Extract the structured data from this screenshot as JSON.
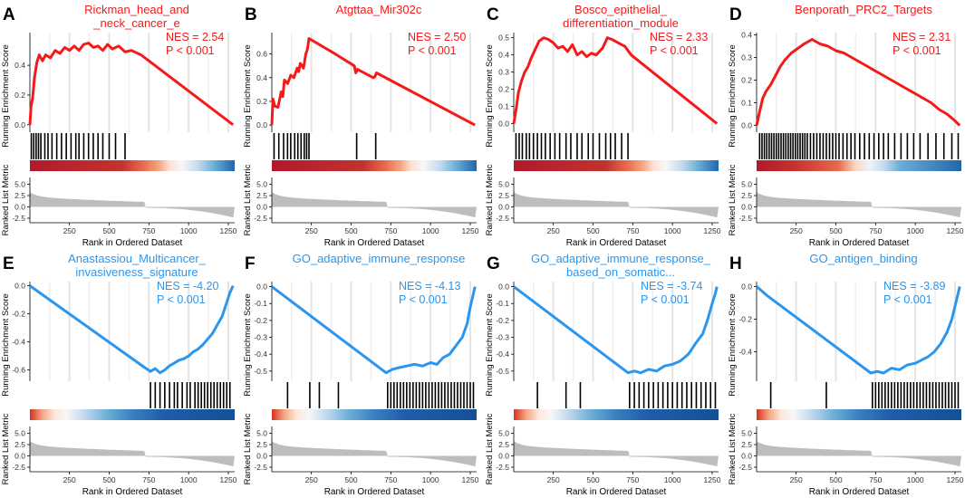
{
  "colors": {
    "up": "#f51a1a",
    "down": "#2a96ee",
    "hit": "#000000",
    "metric_fill": "#bdbdbd",
    "grid": "#e4e4e4"
  },
  "chart_data": [
    {
      "letter": "A",
      "type": "line",
      "title_lines": [
        "Rickman_head_and",
        "_neck_cancer_e"
      ],
      "nes": "NES = 2.54",
      "p": "P < 0.001",
      "direction": "up",
      "ylabel": "Running Enrichment Score",
      "ylim": [
        -0.05,
        0.62
      ],
      "yticks": [
        0.0,
        0.2,
        0.4
      ],
      "es_points": [
        [
          1,
          0.0
        ],
        [
          8,
          0.12
        ],
        [
          18,
          0.18
        ],
        [
          30,
          0.32
        ],
        [
          45,
          0.42
        ],
        [
          60,
          0.47
        ],
        [
          80,
          0.43
        ],
        [
          100,
          0.47
        ],
        [
          130,
          0.45
        ],
        [
          160,
          0.5
        ],
        [
          190,
          0.48
        ],
        [
          220,
          0.52
        ],
        [
          250,
          0.5
        ],
        [
          280,
          0.53
        ],
        [
          310,
          0.5
        ],
        [
          340,
          0.54
        ],
        [
          370,
          0.55
        ],
        [
          400,
          0.52
        ],
        [
          430,
          0.53
        ],
        [
          460,
          0.5
        ],
        [
          490,
          0.54
        ],
        [
          520,
          0.51
        ],
        [
          560,
          0.53
        ],
        [
          600,
          0.49
        ],
        [
          640,
          0.5
        ],
        [
          700,
          0.47
        ],
        [
          1280,
          0.0
        ]
      ],
      "hits": [
        10,
        25,
        40,
        55,
        70,
        95,
        115,
        140,
        170,
        200,
        230,
        260,
        290,
        310,
        340,
        370,
        400,
        430,
        460,
        500,
        540,
        600
      ],
      "heat": "red",
      "metric": {
        "label": "Ranked List Metric",
        "yticks": [
          -2.5,
          0.0,
          2.5,
          5.0
        ],
        "ylim": [
          -3.5,
          6.5
        ]
      },
      "xlabel": "Rank in Ordered Dataset",
      "xticks": [
        250,
        500,
        750,
        1000,
        1250
      ],
      "xlim": [
        1,
        1290
      ]
    },
    {
      "letter": "B",
      "type": "line",
      "title_lines": [
        "Atgttaa_Mir302c"
      ],
      "nes": "NES = 2.50",
      "p": "P < 0.001",
      "direction": "up",
      "ylabel": "Running Enrichment Score",
      "ylim": [
        -0.06,
        0.78
      ],
      "yticks": [
        0.0,
        0.2,
        0.4,
        0.6
      ],
      "es_points": [
        [
          1,
          0.0
        ],
        [
          8,
          0.22
        ],
        [
          20,
          0.16
        ],
        [
          40,
          0.15
        ],
        [
          60,
          0.28
        ],
        [
          70,
          0.24
        ],
        [
          80,
          0.38
        ],
        [
          100,
          0.35
        ],
        [
          120,
          0.42
        ],
        [
          140,
          0.4
        ],
        [
          160,
          0.48
        ],
        [
          170,
          0.45
        ],
        [
          180,
          0.52
        ],
        [
          200,
          0.48
        ],
        [
          215,
          0.6
        ],
        [
          225,
          0.64
        ],
        [
          235,
          0.73
        ],
        [
          400,
          0.6
        ],
        [
          520,
          0.5
        ],
        [
          530,
          0.44
        ],
        [
          540,
          0.47
        ],
        [
          640,
          0.4
        ],
        [
          650,
          0.41
        ],
        [
          660,
          0.44
        ],
        [
          1280,
          0.0
        ]
      ],
      "hits": [
        15,
        45,
        75,
        100,
        120,
        145,
        165,
        185,
        205,
        220,
        235,
        535,
        655
      ],
      "heat": "red",
      "metric": {
        "label": "Ranked List Metric",
        "yticks": [
          -2.5,
          0.0,
          2.5,
          5.0
        ],
        "ylim": [
          -3.5,
          6.5
        ]
      },
      "xlabel": "Rank in Ordered Dataset",
      "xticks": [
        250,
        500,
        750,
        1000,
        1250
      ],
      "xlim": [
        1,
        1290
      ]
    },
    {
      "letter": "C",
      "type": "line",
      "title_lines": [
        "Bosco_epithelial_",
        "differentiation_module"
      ],
      "nes": "NES = 2.33",
      "p": "P < 0.001",
      "direction": "up",
      "ylabel": "Running Enrichment Score",
      "ylim": [
        -0.05,
        0.53
      ],
      "yticks": [
        0.0,
        0.1,
        0.2,
        0.3,
        0.4,
        0.5
      ],
      "es_points": [
        [
          1,
          0.0
        ],
        [
          15,
          0.08
        ],
        [
          30,
          0.18
        ],
        [
          50,
          0.25
        ],
        [
          70,
          0.3
        ],
        [
          90,
          0.33
        ],
        [
          110,
          0.38
        ],
        [
          130,
          0.42
        ],
        [
          160,
          0.48
        ],
        [
          190,
          0.5
        ],
        [
          220,
          0.49
        ],
        [
          250,
          0.47
        ],
        [
          280,
          0.44
        ],
        [
          310,
          0.45
        ],
        [
          340,
          0.42
        ],
        [
          370,
          0.46
        ],
        [
          400,
          0.4
        ],
        [
          430,
          0.42
        ],
        [
          460,
          0.39
        ],
        [
          490,
          0.41
        ],
        [
          520,
          0.4
        ],
        [
          560,
          0.44
        ],
        [
          590,
          0.5
        ],
        [
          620,
          0.49
        ],
        [
          660,
          0.47
        ],
        [
          700,
          0.45
        ],
        [
          740,
          0.4
        ],
        [
          1280,
          0.0
        ]
      ],
      "hits": [
        15,
        35,
        55,
        80,
        100,
        125,
        150,
        175,
        200,
        230,
        260,
        290,
        330,
        360,
        400,
        430,
        470,
        500,
        540,
        580,
        610,
        640,
        680,
        720
      ],
      "heat": "red",
      "metric": {
        "label": "Ranked List Metric",
        "yticks": [
          -2.5,
          0.0,
          2.5,
          5.0
        ],
        "ylim": [
          -3.5,
          6.5
        ]
      },
      "xlabel": "Rank in Ordered Dataset",
      "xticks": [
        250,
        500,
        750,
        1000,
        1250
      ],
      "xlim": [
        1,
        1290
      ]
    },
    {
      "letter": "D",
      "type": "line",
      "title_lines": [
        "Benporath_PRC2_Targets"
      ],
      "nes": "NES = 2.31",
      "p": "P < 0.001",
      "direction": "up",
      "ylabel": "Running Enrichment Score",
      "ylim": [
        -0.03,
        0.41
      ],
      "yticks": [
        0.0,
        0.1,
        0.2,
        0.3,
        0.4
      ],
      "es_points": [
        [
          1,
          0.0
        ],
        [
          20,
          0.06
        ],
        [
          40,
          0.12
        ],
        [
          60,
          0.15
        ],
        [
          90,
          0.18
        ],
        [
          120,
          0.22
        ],
        [
          150,
          0.26
        ],
        [
          180,
          0.29
        ],
        [
          220,
          0.32
        ],
        [
          260,
          0.34
        ],
        [
          300,
          0.36
        ],
        [
          350,
          0.38
        ],
        [
          400,
          0.36
        ],
        [
          450,
          0.35
        ],
        [
          500,
          0.33
        ],
        [
          550,
          0.32
        ],
        [
          600,
          0.3
        ],
        [
          650,
          0.28
        ],
        [
          700,
          0.26
        ],
        [
          750,
          0.24
        ],
        [
          800,
          0.22
        ],
        [
          850,
          0.2
        ],
        [
          900,
          0.18
        ],
        [
          950,
          0.16
        ],
        [
          1000,
          0.14
        ],
        [
          1050,
          0.12
        ],
        [
          1100,
          0.1
        ],
        [
          1150,
          0.07
        ],
        [
          1200,
          0.05
        ],
        [
          1250,
          0.02
        ],
        [
          1280,
          0.0
        ]
      ],
      "hits": [
        20,
        35,
        50,
        65,
        80,
        95,
        110,
        125,
        140,
        155,
        170,
        185,
        200,
        215,
        230,
        245,
        260,
        275,
        290,
        305,
        320,
        340,
        360,
        380,
        400,
        420,
        440,
        460,
        480,
        500,
        520,
        545,
        570,
        595,
        620,
        650,
        680,
        710,
        740,
        770,
        800,
        830,
        870,
        910,
        950,
        990,
        1030,
        1080,
        1130,
        1180,
        1230,
        1270
      ],
      "heat": "red-long",
      "metric": {
        "label": "Ranked List Metric",
        "yticks": [
          -2.5,
          0.0,
          2.5,
          5.0
        ],
        "ylim": [
          -3.5,
          6.5
        ]
      },
      "xlabel": "Rank in Ordered Dataset",
      "xticks": [
        250,
        500,
        750,
        1000,
        1250
      ],
      "xlim": [
        1,
        1290
      ]
    },
    {
      "letter": "E",
      "type": "line",
      "title_lines": [
        "Anastassiou_Multicancer_",
        "invasiveness_signature"
      ],
      "nes": "NES = -4.20",
      "p": "P < 0.001",
      "direction": "down",
      "ylabel": "Running Enrichment Score",
      "ylim": [
        -0.68,
        0.03
      ],
      "yticks": [
        -0.6,
        -0.4,
        -0.2,
        0.0
      ],
      "es_points": [
        [
          1,
          0.0
        ],
        [
          720,
          -0.58
        ],
        [
          760,
          -0.61
        ],
        [
          790,
          -0.59
        ],
        [
          820,
          -0.62
        ],
        [
          850,
          -0.6
        ],
        [
          880,
          -0.57
        ],
        [
          910,
          -0.55
        ],
        [
          940,
          -0.53
        ],
        [
          970,
          -0.52
        ],
        [
          1000,
          -0.5
        ],
        [
          1030,
          -0.47
        ],
        [
          1060,
          -0.45
        ],
        [
          1090,
          -0.42
        ],
        [
          1120,
          -0.38
        ],
        [
          1150,
          -0.34
        ],
        [
          1180,
          -0.28
        ],
        [
          1210,
          -0.22
        ],
        [
          1240,
          -0.12
        ],
        [
          1260,
          -0.05
        ],
        [
          1280,
          0.0
        ]
      ],
      "hits": [
        760,
        790,
        820,
        850,
        880,
        910,
        930,
        960,
        990,
        1010,
        1040,
        1060,
        1080,
        1100,
        1120,
        1140,
        1160,
        1180,
        1200,
        1220,
        1240,
        1260
      ],
      "heat": "blue",
      "metric": {
        "label": "Ranked List Metric",
        "yticks": [
          -2.5,
          0.0,
          2.5,
          5.0
        ],
        "ylim": [
          -3.5,
          6.5
        ]
      },
      "xlabel": "Rank in Ordered Dataset",
      "xticks": [
        250,
        500,
        750,
        1000,
        1250
      ],
      "xlim": [
        1,
        1290
      ]
    },
    {
      "letter": "F",
      "type": "line",
      "title_lines": [
        "GO_adaptive_immune_response"
      ],
      "nes": "NES = -4.13",
      "p": "P < 0.001",
      "direction": "down",
      "ylabel": "Running Enrichment Score",
      "ylim": [
        -0.56,
        0.03
      ],
      "yticks": [
        -0.5,
        -0.4,
        -0.3,
        -0.2,
        -0.1,
        0.0
      ],
      "es_points": [
        [
          1,
          0.0
        ],
        [
          720,
          -0.51
        ],
        [
          760,
          -0.49
        ],
        [
          800,
          -0.48
        ],
        [
          850,
          -0.47
        ],
        [
          900,
          -0.46
        ],
        [
          950,
          -0.47
        ],
        [
          1000,
          -0.45
        ],
        [
          1040,
          -0.46
        ],
        [
          1080,
          -0.42
        ],
        [
          1120,
          -0.4
        ],
        [
          1160,
          -0.35
        ],
        [
          1200,
          -0.3
        ],
        [
          1230,
          -0.22
        ],
        [
          1250,
          -0.12
        ],
        [
          1270,
          -0.04
        ],
        [
          1280,
          0.0
        ]
      ],
      "hits": [
        100,
        240,
        300,
        420,
        730,
        750,
        770,
        790,
        810,
        830,
        850,
        870,
        890,
        910,
        930,
        950,
        970,
        990,
        1010,
        1030,
        1050,
        1070,
        1090,
        1110,
        1130,
        1150,
        1170,
        1190,
        1210,
        1230,
        1250,
        1270
      ],
      "heat": "blue",
      "metric": {
        "label": "Ranked List Metric",
        "yticks": [
          -2.5,
          0.0,
          2.5,
          5.0
        ],
        "ylim": [
          -3.5,
          6.5
        ]
      },
      "xlabel": "Rank in Ordered Dataset",
      "xticks": [
        250,
        500,
        750,
        1000,
        1250
      ],
      "xlim": [
        1,
        1290
      ]
    },
    {
      "letter": "G",
      "type": "line",
      "title_lines": [
        "GO_adaptive_immune_response_",
        "based_on_somatic..."
      ],
      "nes": "NES = -3.74",
      "p": "P < 0.001",
      "direction": "down",
      "ylabel": "Running Enrichment Score",
      "ylim": [
        -0.56,
        0.03
      ],
      "yticks": [
        -0.5,
        -0.4,
        -0.3,
        -0.2,
        -0.1,
        0.0
      ],
      "es_points": [
        [
          1,
          0.0
        ],
        [
          720,
          -0.51
        ],
        [
          760,
          -0.5
        ],
        [
          800,
          -0.51
        ],
        [
          850,
          -0.49
        ],
        [
          900,
          -0.5
        ],
        [
          950,
          -0.47
        ],
        [
          1000,
          -0.46
        ],
        [
          1050,
          -0.44
        ],
        [
          1100,
          -0.4
        ],
        [
          1150,
          -0.33
        ],
        [
          1190,
          -0.28
        ],
        [
          1220,
          -0.2
        ],
        [
          1250,
          -0.1
        ],
        [
          1270,
          -0.04
        ],
        [
          1280,
          0.0
        ]
      ],
      "hits": [
        150,
        330,
        420,
        730,
        760,
        790,
        820,
        850,
        880,
        910,
        940,
        970,
        1000,
        1030,
        1060,
        1090,
        1120,
        1150,
        1180,
        1210,
        1240,
        1270
      ],
      "heat": "blue",
      "metric": {
        "label": "Ranked List Metric",
        "yticks": [
          -2.5,
          0.0,
          2.5,
          5.0
        ],
        "ylim": [
          -3.5,
          6.5
        ]
      },
      "xlabel": "Rank in Ordered Dataset",
      "xticks": [
        250,
        500,
        750,
        1000,
        1250
      ],
      "xlim": [
        1,
        1290
      ]
    },
    {
      "letter": "H",
      "type": "line",
      "title_lines": [
        "GO_antigen_binding"
      ],
      "nes": "NES = -3.89",
      "p": "P < 0.001",
      "direction": "down",
      "ylabel": "Running Enrichment Score",
      "ylim": [
        -0.58,
        0.03
      ],
      "yticks": [
        -0.4,
        -0.2,
        0.0
      ],
      "es_points": [
        [
          1,
          0.0
        ],
        [
          60,
          -0.05
        ],
        [
          100,
          -0.08
        ],
        [
          720,
          -0.53
        ],
        [
          760,
          -0.52
        ],
        [
          800,
          -0.53
        ],
        [
          850,
          -0.5
        ],
        [
          900,
          -0.51
        ],
        [
          950,
          -0.48
        ],
        [
          1000,
          -0.47
        ],
        [
          1040,
          -0.45
        ],
        [
          1080,
          -0.43
        ],
        [
          1120,
          -0.4
        ],
        [
          1160,
          -0.35
        ],
        [
          1200,
          -0.28
        ],
        [
          1230,
          -0.2
        ],
        [
          1250,
          -0.12
        ],
        [
          1270,
          -0.04
        ],
        [
          1280,
          0.0
        ]
      ],
      "hits": [
        90,
        440,
        730,
        750,
        770,
        790,
        810,
        830,
        850,
        870,
        890,
        910,
        930,
        950,
        970,
        990,
        1010,
        1030,
        1050,
        1070,
        1090,
        1110,
        1130,
        1150,
        1170,
        1190,
        1210,
        1230,
        1250,
        1270
      ],
      "heat": "blue",
      "metric": {
        "label": "Ranked List Metric",
        "yticks": [
          -2.5,
          0.0,
          2.5,
          5.0
        ],
        "ylim": [
          -3.5,
          6.5
        ]
      },
      "xlabel": "Rank in Ordered Dataset",
      "xticks": [
        250,
        500,
        750,
        1000,
        1250
      ],
      "xlim": [
        1,
        1290
      ]
    }
  ]
}
